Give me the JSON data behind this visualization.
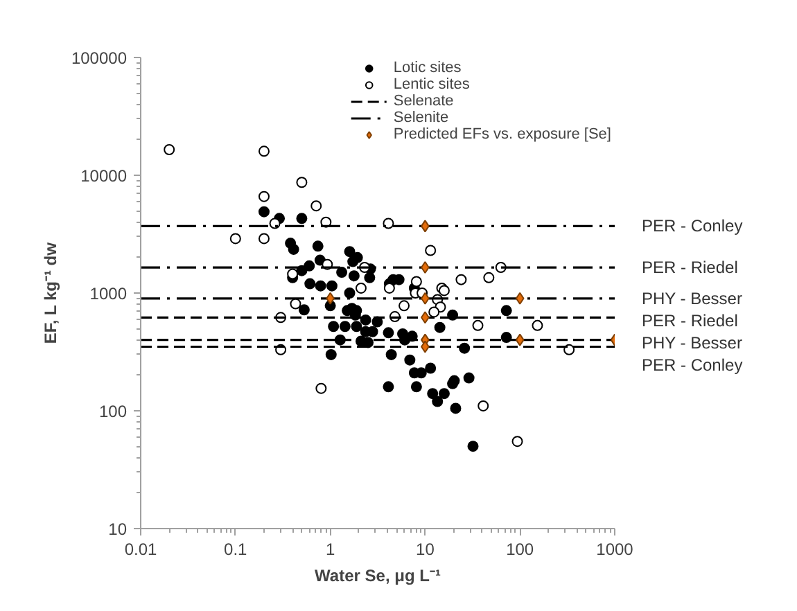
{
  "chart_data": {
    "type": "scatter",
    "xlabel": "Water Se, μg L⁻¹",
    "ylabel": "EF, L kg⁻¹ dw",
    "log": "xy",
    "xlim": [
      0.01,
      1000
    ],
    "ylim": [
      10,
      100000
    ],
    "xticks": [
      0.01,
      0.1,
      1,
      10,
      100,
      1000
    ],
    "yticks": [
      10,
      100,
      1000,
      10000,
      100000
    ],
    "grid": false,
    "legend": "top right",
    "series": [
      {
        "name": "Lotic sites",
        "marker": "circle",
        "color": "#000000",
        "x": [
          0.2,
          0.29,
          0.5,
          0.38,
          0.41,
          0.74,
          0.78,
          0.5,
          0.6,
          0.4,
          0.61,
          0.79,
          1.04,
          0.53,
          1.0,
          1.08,
          1.43,
          1.27,
          1.02,
          1.32,
          1.51,
          1.6,
          1.93,
          1.73,
          2.65,
          1.78,
          2.6,
          4.6,
          5.3,
          4.2,
          7.7,
          1.6,
          1.69,
          1.89,
          1.84,
          2.36,
          3.13,
          1.89,
          2.36,
          2.79,
          4.1,
          5.8,
          7.3,
          6.1,
          2.11,
          2.5,
          14.3,
          19.5,
          72,
          72,
          26,
          4.4,
          6.9,
          7.7,
          9.1,
          11.4,
          4.1,
          8.1,
          12,
          13.5,
          15.9,
          19.5,
          20.3,
          29,
          21,
          32
        ],
        "values": [
          4900,
          4300,
          4300,
          2650,
          2350,
          2500,
          1900,
          1550,
          1700,
          1350,
          1200,
          1150,
          1150,
          720,
          780,
          520,
          520,
          400,
          300,
          1500,
          710,
          2250,
          2000,
          1850,
          1600,
          1400,
          1350,
          1300,
          1300,
          1200,
          1100,
          1000,
          740,
          710,
          650,
          590,
          570,
          520,
          470,
          470,
          460,
          450,
          430,
          400,
          390,
          380,
          510,
          650,
          710,
          420,
          340,
          300,
          270,
          210,
          210,
          230,
          160,
          160,
          140,
          120,
          140,
          170,
          180,
          190,
          105,
          50
        ]
      },
      {
        "name": "Lentic sites",
        "marker": "circle",
        "color": "#ffffff",
        "x": [
          0.02,
          0.2,
          0.5,
          0.2,
          0.26,
          0.1,
          0.2,
          0.4,
          0.93,
          0.43,
          0.3,
          0.3,
          0.8,
          0.71,
          0.9,
          4.1,
          11.4,
          2.3,
          63,
          24,
          47,
          2.11,
          4.2,
          8.1,
          7.9,
          9.3,
          15,
          15.9,
          13.5,
          14.5,
          6.0,
          12.4,
          4.8,
          36,
          153,
          330,
          41,
          94
        ],
        "values": [
          16500,
          16000,
          8700,
          6600,
          3900,
          2900,
          2900,
          1450,
          1750,
          810,
          620,
          330,
          155,
          5500,
          4000,
          3900,
          2300,
          1650,
          1650,
          1300,
          1350,
          1100,
          1100,
          1250,
          1000,
          1000,
          1100,
          1050,
          880,
          760,
          780,
          690,
          630,
          530,
          530,
          330,
          110,
          55
        ]
      },
      {
        "name": "Selenate",
        "type": "line",
        "line_style": "dashed",
        "color": "#000000",
        "x": [
          0.01,
          1000
        ],
        "values": [
          620,
          620
        ]
      },
      {
        "type": "line",
        "line_style": "dashed",
        "color": "#000000",
        "x": [
          0.01,
          1000
        ],
        "values": [
          400,
          400
        ]
      },
      {
        "type": "line",
        "line_style": "dashed",
        "color": "#000000",
        "x": [
          0.01,
          1000
        ],
        "values": [
          350,
          350
        ]
      },
      {
        "name": "Selenite",
        "type": "line",
        "line_style": "dashdot",
        "color": "#000000",
        "x": [
          0.01,
          1000
        ],
        "values": [
          3700,
          3700
        ]
      },
      {
        "type": "line",
        "line_style": "dashdot",
        "color": "#000000",
        "x": [
          0.01,
          1000
        ],
        "values": [
          1650,
          1650
        ]
      },
      {
        "type": "line",
        "line_style": "dashdot",
        "color": "#000000",
        "x": [
          0.01,
          1000
        ],
        "values": [
          900,
          900
        ]
      },
      {
        "name": "Predicted EFs vs. exposure [Se]",
        "marker": "diamond",
        "color": "#e46c0a",
        "x": [
          10,
          10,
          1,
          10,
          100,
          10,
          10,
          100,
          1000,
          10
        ],
        "values": [
          3700,
          1650,
          900,
          900,
          900,
          620,
          400,
          400,
          400,
          350
        ]
      }
    ],
    "annotations": [
      "PER - Conley",
      "PER - Riedel",
      "PHY - Besser",
      "PER - Riedel",
      "PHY - Besser",
      "PER - Conley"
    ]
  }
}
